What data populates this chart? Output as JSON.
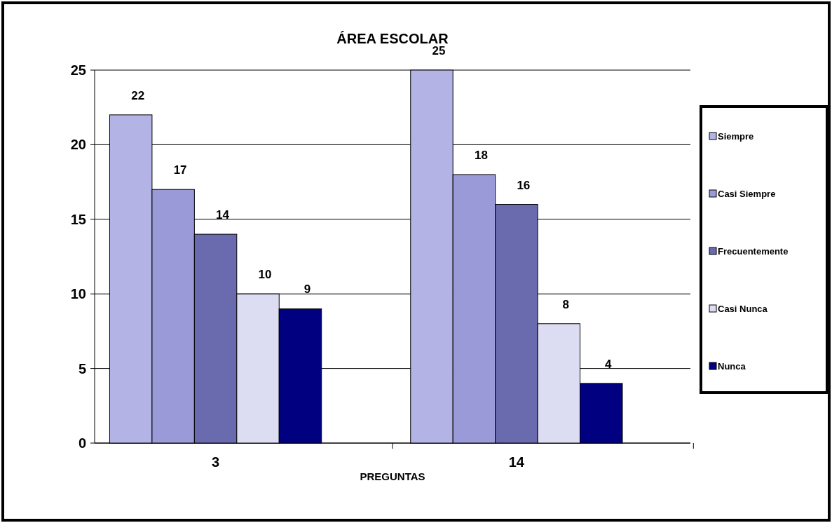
{
  "chart_data": {
    "type": "bar",
    "title": "ÁREA ESCOLAR",
    "xlabel": "PREGUNTAS",
    "categories": [
      "3",
      "14"
    ],
    "series": [
      {
        "name": "Siempre",
        "color": "#b3b3e6",
        "values": [
          22,
          25
        ]
      },
      {
        "name": "Casi Siempre",
        "color": "#9a9ad8",
        "values": [
          17,
          18
        ]
      },
      {
        "name": "Frecuentemente",
        "color": "#6a6aae",
        "values": [
          14,
          16
        ]
      },
      {
        "name": "Casi Nunca",
        "color": "#dcdcf2",
        "values": [
          10,
          8
        ]
      },
      {
        "name": "Nunca",
        "color": "#000080",
        "values": [
          9,
          4
        ]
      }
    ],
    "ylim": [
      0,
      25
    ],
    "yticks": [
      0,
      5,
      10,
      15,
      20,
      25
    ],
    "grid": "y",
    "legend": "right",
    "data_labels": true
  }
}
